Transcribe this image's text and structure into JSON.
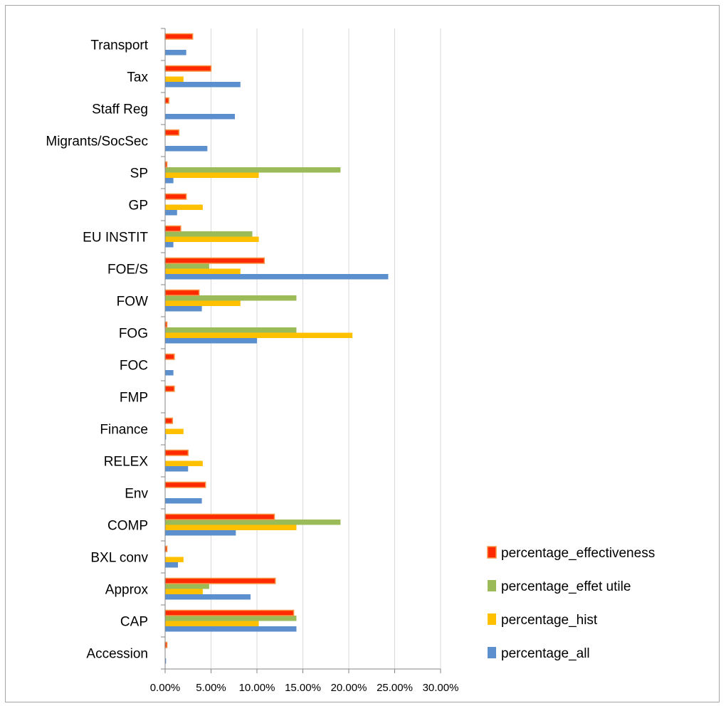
{
  "chart_data": {
    "type": "bar",
    "orientation": "horizontal",
    "title": "",
    "xlabel": "",
    "ylabel": "",
    "xlim": [
      0,
      0.3
    ],
    "x_ticks": [
      "0.00%",
      "5.00%",
      "10.00%",
      "15.00%",
      "20.00%",
      "25.00%",
      "30.00%"
    ],
    "grid": true,
    "legend_position": "right",
    "categories": [
      "Accession",
      "CAP",
      "Approx",
      "BXL conv",
      "COMP",
      "Env",
      "RELEX",
      "Finance",
      "FMP",
      "FOC",
      "FOG",
      "FOW",
      "FOE/S",
      "EU INSTIT",
      "GP",
      "SP",
      "Migrants/SocSec",
      "Staff Reg",
      "Tax",
      "Transport"
    ],
    "series": [
      {
        "name": "percentage_all",
        "color": "#5b8fce",
        "values": [
          0.001,
          0.143,
          0.093,
          0.014,
          0.077,
          0.04,
          0.025,
          0.001,
          0.0,
          0.009,
          0.1,
          0.04,
          0.243,
          0.009,
          0.013,
          0.009,
          0.046,
          0.076,
          0.082,
          0.023
        ]
      },
      {
        "name": "percentage_hist",
        "color": "#ffc000",
        "values": [
          0.0,
          0.102,
          0.041,
          0.02,
          0.143,
          0.0,
          0.041,
          0.02,
          0.0,
          0.0,
          0.204,
          0.082,
          0.082,
          0.102,
          0.041,
          0.102,
          0.0,
          0.0,
          0.02,
          0.0
        ]
      },
      {
        "name": "percentage_effet utile",
        "color": "#9bbb59",
        "values": [
          0.0,
          0.143,
          0.048,
          0.0,
          0.191,
          0.0,
          0.0,
          0.0,
          0.0,
          0.0,
          0.143,
          0.143,
          0.048,
          0.095,
          0.0,
          0.191,
          0.0,
          0.0,
          0.0,
          0.0
        ]
      },
      {
        "name": "percentage_effectiveness",
        "color": "#ff2a00",
        "values": [
          0.002,
          0.14,
          0.12,
          0.002,
          0.119,
          0.044,
          0.025,
          0.008,
          0.01,
          0.01,
          0.002,
          0.037,
          0.108,
          0.017,
          0.023,
          0.002,
          0.015,
          0.004,
          0.05,
          0.03
        ]
      }
    ]
  },
  "colors": {
    "effectiveness_border": "#f79646",
    "gridline": "#d9d9d9",
    "axis": "#868686",
    "frame": "#a6a6a6"
  }
}
